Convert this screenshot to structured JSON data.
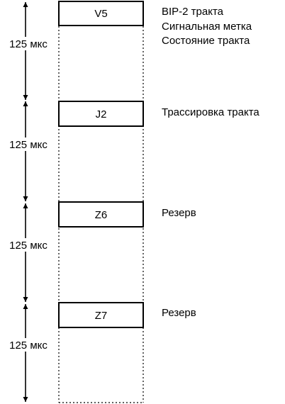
{
  "frame": {
    "period_label": "125 мкс"
  },
  "bytes": [
    {
      "name": "V5",
      "description": [
        "BIP-2 тракта",
        "Сигнальная метка",
        "Состояние тракта"
      ]
    },
    {
      "name": "J2",
      "description": [
        "Трассировка тракта"
      ]
    },
    {
      "name": "Z6",
      "description": [
        "Резерв"
      ]
    },
    {
      "name": "Z7",
      "description": [
        "Резерв"
      ]
    }
  ],
  "colors": {
    "line": "#000000",
    "background": "#ffffff"
  }
}
